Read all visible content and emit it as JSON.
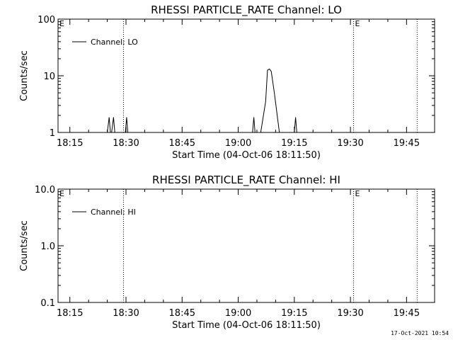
{
  "footer": {
    "timestamp": "17-Oct-2021 10:54"
  },
  "chart_data": [
    {
      "type": "line",
      "title": "RHESSI PARTICLE_RATE Channel: LO",
      "xlabel": "Start Time (04-Oct-06 18:11:50)",
      "ylabel": "Counts/sec",
      "yscale": "log",
      "ylim": [
        1,
        100
      ],
      "yticks": [
        "1",
        "10",
        "100"
      ],
      "xticks": [
        "18:15",
        "18:30",
        "18:45",
        "19:00",
        "19:15",
        "19:30",
        "19:45"
      ],
      "xlim": [
        "18:11:50",
        "19:52:30"
      ],
      "legend": {
        "position": "top-left",
        "entries": [
          "Channel: LO"
        ]
      },
      "markers": [
        {
          "time": "18:29:20",
          "label": ""
        },
        {
          "time": "19:30:50",
          "label": "E"
        },
        {
          "time": "19:47:50",
          "label": ""
        }
      ],
      "edge_label": "E",
      "series": [
        {
          "name": "Channel: LO",
          "x": [
            "18:25:00",
            "18:25:30",
            "18:25:50",
            "18:26:10",
            "18:26:40",
            "18:27:00",
            "18:27:20",
            "18:29:50",
            "18:30:10",
            "18:30:30",
            "19:03:50",
            "19:04:10",
            "19:04:30",
            "19:06:00",
            "19:07:20",
            "19:07:50",
            "19:08:20",
            "19:08:50",
            "19:09:40",
            "19:11:00",
            "19:11:40",
            "19:15:00",
            "19:15:20",
            "19:15:40"
          ],
          "y": [
            1,
            1.85,
            1,
            1,
            1.85,
            1,
            1,
            1,
            1.85,
            1,
            1,
            1.85,
            1,
            1,
            3.5,
            12.5,
            13.2,
            12,
            5,
            1,
            1,
            1,
            1.85,
            1
          ]
        }
      ]
    },
    {
      "type": "line",
      "title": "RHESSI PARTICLE_RATE Channel: HI",
      "xlabel": "Start Time (04-Oct-06 18:11:50)",
      "ylabel": "Counts/sec",
      "yscale": "log",
      "ylim": [
        0.1,
        10
      ],
      "yticks": [
        "0.1",
        "1.0",
        "10.0"
      ],
      "xticks": [
        "18:15",
        "18:30",
        "18:45",
        "19:00",
        "19:15",
        "19:30",
        "19:45"
      ],
      "xlim": [
        "18:11:50",
        "19:52:30"
      ],
      "legend": {
        "position": "top-left",
        "entries": [
          "Channel: HI"
        ]
      },
      "markers": [
        {
          "time": "18:29:20",
          "label": ""
        },
        {
          "time": "19:30:50",
          "label": "E"
        },
        {
          "time": "19:47:50",
          "label": ""
        }
      ],
      "edge_label": "E",
      "series": [
        {
          "name": "Channel: HI",
          "x": [],
          "y": []
        }
      ]
    }
  ]
}
